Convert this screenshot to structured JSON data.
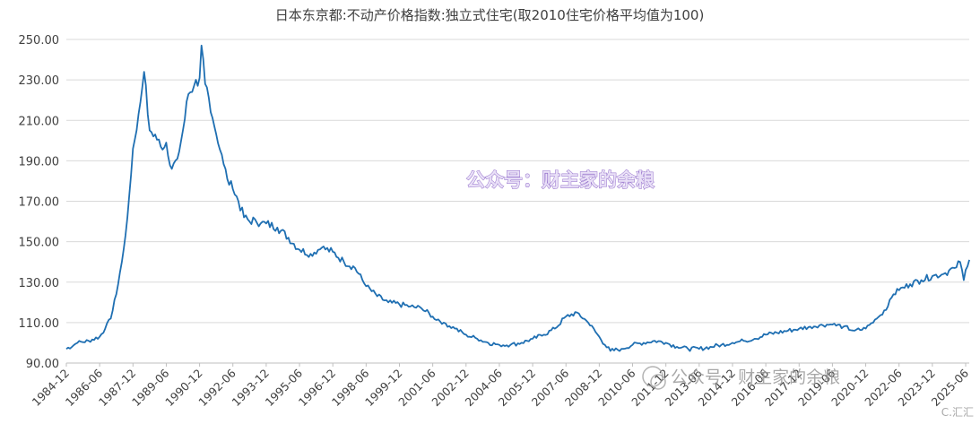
{
  "chart_data": {
    "type": "line",
    "title": "日本东京都:不动产价格指数:独立式住宅(取2010住宅价格平均值为100)",
    "xlabel": "",
    "ylabel": "",
    "ylim": [
      90,
      250
    ],
    "yticks": [
      "90.00",
      "110.00",
      "130.00",
      "150.00",
      "170.00",
      "190.00",
      "210.00",
      "230.00",
      "250.00"
    ],
    "x_tick_labels": [
      "1984-12",
      "1986-06",
      "1987-12",
      "1989-06",
      "1990-12",
      "1992-06",
      "1993-12",
      "1995-06",
      "1996-12",
      "1998-06",
      "1999-12",
      "2001-06",
      "2002-12",
      "2004-06",
      "2005-12",
      "2007-06",
      "2008-12",
      "2010-06",
      "2011-12",
      "2013-06",
      "2014-12",
      "2016-06",
      "2017-12",
      "2019-06",
      "2020-12",
      "2022-06",
      "2023-12",
      "2025-06"
    ],
    "grid": true,
    "legend": "none",
    "series": [
      {
        "color": "#1f6fb2",
        "points": [
          [
            "1984-12",
            97
          ],
          [
            "1985-06",
            100
          ],
          [
            "1985-12",
            101
          ],
          [
            "1986-06",
            103
          ],
          [
            "1986-09",
            107
          ],
          [
            "1986-12",
            112
          ],
          [
            "1987-03",
            124
          ],
          [
            "1987-06",
            140
          ],
          [
            "1987-09",
            162
          ],
          [
            "1987-12",
            196
          ],
          [
            "1988-03",
            213
          ],
          [
            "1988-06",
            234
          ],
          [
            "1988-09",
            205
          ],
          [
            "1988-12",
            203
          ],
          [
            "1989-03",
            197
          ],
          [
            "1989-06",
            199
          ],
          [
            "1989-09",
            186
          ],
          [
            "1989-12",
            191
          ],
          [
            "1990-03",
            205
          ],
          [
            "1990-06",
            223
          ],
          [
            "1990-09",
            227
          ],
          [
            "1990-12",
            231
          ],
          [
            "1991-01",
            247
          ],
          [
            "1991-03",
            228
          ],
          [
            "1991-06",
            214
          ],
          [
            "1991-09",
            203
          ],
          [
            "1991-12",
            193
          ],
          [
            "1992-03",
            181
          ],
          [
            "1992-06",
            176
          ],
          [
            "1992-09",
            170
          ],
          [
            "1992-12",
            162
          ],
          [
            "1993-03",
            160
          ],
          [
            "1993-06",
            161
          ],
          [
            "1993-09",
            159
          ],
          [
            "1993-12",
            159
          ],
          [
            "1994-06",
            157
          ],
          [
            "1994-12",
            152
          ],
          [
            "1995-06",
            146
          ],
          [
            "1995-12",
            144
          ],
          [
            "1996-06",
            147
          ],
          [
            "1996-12",
            145
          ],
          [
            "1997-06",
            140
          ],
          [
            "1997-12",
            137
          ],
          [
            "1998-06",
            128
          ],
          [
            "1998-12",
            123
          ],
          [
            "1999-06",
            120
          ],
          [
            "1999-12",
            119
          ],
          [
            "2000-06",
            118
          ],
          [
            "2000-12",
            117
          ],
          [
            "2001-06",
            113
          ],
          [
            "2001-12",
            110
          ],
          [
            "2002-06",
            107
          ],
          [
            "2002-12",
            104
          ],
          [
            "2003-06",
            102
          ],
          [
            "2003-12",
            100
          ],
          [
            "2004-06",
            99
          ],
          [
            "2004-12",
            99
          ],
          [
            "2005-06",
            100
          ],
          [
            "2005-12",
            102
          ],
          [
            "2006-06",
            104
          ],
          [
            "2006-12",
            107
          ],
          [
            "2007-06",
            113
          ],
          [
            "2007-12",
            115
          ],
          [
            "2008-06",
            110
          ],
          [
            "2008-12",
            103
          ],
          [
            "2009-03",
            99
          ],
          [
            "2009-06",
            96
          ],
          [
            "2009-12",
            97
          ],
          [
            "2010-06",
            99
          ],
          [
            "2010-12",
            100
          ],
          [
            "2011-06",
            101
          ],
          [
            "2011-12",
            100
          ],
          [
            "2012-06",
            98
          ],
          [
            "2012-12",
            97
          ],
          [
            "2013-06",
            97
          ],
          [
            "2013-12",
            98
          ],
          [
            "2014-06",
            99
          ],
          [
            "2014-12",
            100
          ],
          [
            "2015-06",
            101
          ],
          [
            "2015-12",
            102
          ],
          [
            "2016-06",
            104
          ],
          [
            "2016-12",
            105
          ],
          [
            "2017-06",
            106
          ],
          [
            "2017-12",
            107
          ],
          [
            "2018-06",
            108
          ],
          [
            "2018-12",
            109
          ],
          [
            "2019-06",
            109
          ],
          [
            "2019-12",
            108
          ],
          [
            "2020-06",
            106
          ],
          [
            "2020-12",
            107
          ],
          [
            "2021-06",
            112
          ],
          [
            "2021-12",
            118
          ],
          [
            "2022-03",
            124
          ],
          [
            "2022-06",
            126
          ],
          [
            "2022-12",
            129
          ],
          [
            "2023-06",
            131
          ],
          [
            "2023-12",
            133
          ],
          [
            "2024-06",
            134
          ],
          [
            "2024-12",
            137
          ],
          [
            "2025-03",
            140
          ],
          [
            "2025-05",
            131
          ],
          [
            "2025-06",
            136
          ],
          [
            "2025-08",
            141
          ]
        ]
      }
    ]
  },
  "watermarks": {
    "center": "公众号：财主家的余粮",
    "bottom": "公众号 · 财主家的余粮",
    "corner": "C.汇汇"
  }
}
